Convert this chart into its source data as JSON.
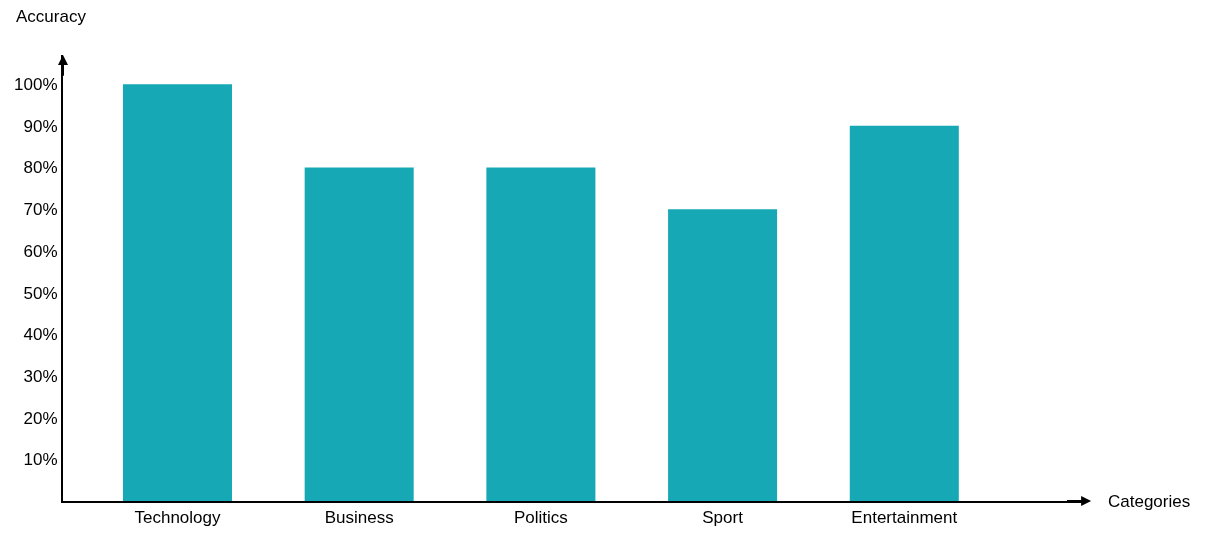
{
  "chart_data": {
    "type": "bar",
    "xlabel": "Categories",
    "ylabel": "Accuracy",
    "categories": [
      "Technology",
      "Business",
      "Politics",
      "Sport",
      "Entertainment"
    ],
    "values": [
      100,
      80,
      80,
      70,
      90
    ],
    "color": "#16a9b5",
    "ylim": [
      0,
      107
    ],
    "yticks": [
      {
        "value": 10,
        "label": "10%"
      },
      {
        "value": 20,
        "label": "20%"
      },
      {
        "value": 30,
        "label": "30%"
      },
      {
        "value": 40,
        "label": "40%"
      },
      {
        "value": 50,
        "label": "50%"
      },
      {
        "value": 60,
        "label": "60%"
      },
      {
        "value": 70,
        "label": "70%"
      },
      {
        "value": 80,
        "label": "80%"
      },
      {
        "value": 90,
        "label": "90%"
      },
      {
        "value": 100,
        "label": "100%"
      }
    ],
    "grid": false
  }
}
